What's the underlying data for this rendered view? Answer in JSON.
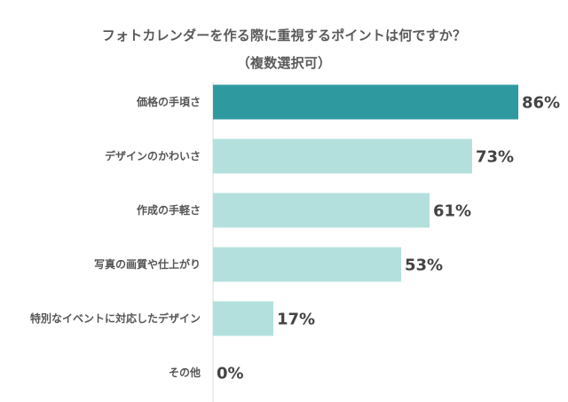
{
  "chart_data": {
    "type": "bar",
    "orientation": "horizontal",
    "title": "フォトカレンダーを作る際に重視するポイントは何ですか？",
    "subtitle": "（複数選択可）",
    "categories": [
      "価格の手頃さ",
      "デザインのかわいさ",
      "作成の手軽さ",
      "写真の画質や仕上がり",
      "特別なイベントに対応したデザイン",
      "その他"
    ],
    "values": [
      86,
      73,
      61,
      53,
      17,
      0
    ],
    "value_labels": [
      "86%",
      "73%",
      "61%",
      "53%",
      "17%",
      "0%"
    ],
    "unit": "%",
    "xlim": [
      0,
      100
    ],
    "grid": false,
    "legend": "none",
    "colors": {
      "highlight": "#2e9aa0",
      "default": "#b3e0dd",
      "axis": "#d9d9d9",
      "category_text": "#555555",
      "value_text": "#444444"
    },
    "highlight_index": 0
  }
}
